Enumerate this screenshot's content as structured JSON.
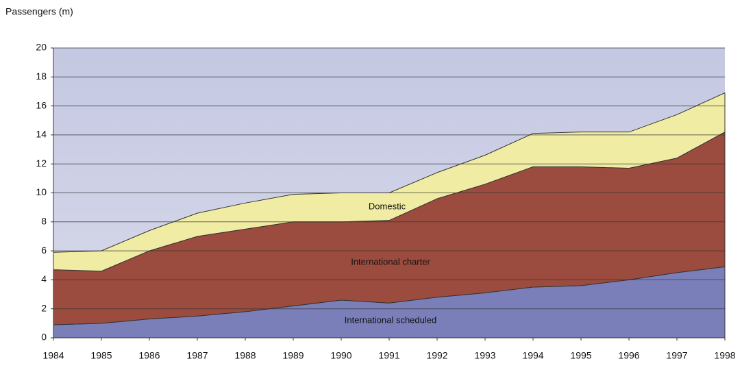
{
  "chart_data": {
    "type": "stacked_area",
    "y_label": "Passengers (m)",
    "x": [
      1984,
      1985,
      1986,
      1987,
      1988,
      1989,
      1990,
      1991,
      1992,
      1993,
      1994,
      1995,
      1996,
      1997,
      1998
    ],
    "xlim": [
      1984,
      1998
    ],
    "xticks": [
      1984,
      1985,
      1986,
      1987,
      1988,
      1989,
      1990,
      1991,
      1992,
      1993,
      1994,
      1995,
      1996,
      1997,
      1998
    ],
    "ylim": [
      0,
      20
    ],
    "yticks": [
      0,
      2,
      4,
      6,
      8,
      10,
      12,
      14,
      16,
      18,
      20
    ],
    "grid": true,
    "series": [
      {
        "name": "International scheduled",
        "color": "#7b7fb9",
        "values": [
          0.9,
          1.0,
          1.3,
          1.5,
          1.8,
          2.2,
          2.6,
          2.4,
          2.8,
          3.1,
          3.5,
          3.6,
          4.0,
          4.5,
          4.9
        ]
      },
      {
        "name": "International charter",
        "color": "#9b4c3e",
        "values": [
          3.8,
          3.6,
          4.7,
          5.5,
          5.7,
          5.8,
          5.4,
          5.7,
          6.8,
          7.5,
          8.3,
          8.2,
          7.7,
          7.9,
          9.3
        ]
      },
      {
        "name": "Domestic",
        "color": "#f1eca3",
        "values": [
          1.2,
          1.4,
          1.4,
          1.6,
          1.8,
          1.9,
          2.0,
          1.9,
          1.8,
          2.0,
          2.3,
          2.4,
          2.5,
          3.0,
          2.7
        ]
      }
    ]
  }
}
